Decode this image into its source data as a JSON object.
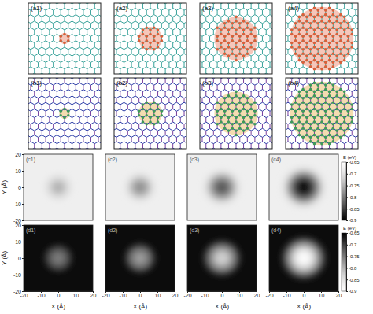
{
  "lattice_panels": [
    {
      "label": "(a1)",
      "radius": 3
    },
    {
      "label": "(a2)",
      "radius": 6.5
    },
    {
      "label": "(a3)",
      "radius": 12
    },
    {
      "label": "(a4)",
      "radius": 17.5
    },
    {
      "label": "(b1)",
      "radius": 3
    },
    {
      "label": "(b2)",
      "radius": 6.5
    },
    {
      "label": "(b3)",
      "radius": 12
    },
    {
      "label": "(b4)",
      "radius": 17.5
    }
  ],
  "chart_data": [
    {
      "type": "heatmap",
      "label": "(c1)",
      "xlim": [
        -20,
        20
      ],
      "ylim": [
        -20,
        20
      ],
      "yticks": [
        -20,
        -10,
        0,
        10,
        20
      ],
      "tick_labels": "y",
      "y_label": "Y (Å)",
      "color": "gray",
      "color_range": [
        -0.9,
        -0.65
      ],
      "background": -0.68,
      "rings": [
        {
          "radius": 8,
          "value": -0.7
        },
        {
          "radius": 5,
          "value": -0.73
        },
        {
          "radius": 3,
          "value": -0.75
        }
      ]
    },
    {
      "type": "heatmap",
      "label": "(c2)",
      "xlim": [
        -20,
        20
      ],
      "ylim": [
        -20,
        20
      ],
      "tick_labels": false,
      "color": "gray",
      "color_range": [
        -0.9,
        -0.65
      ],
      "background": -0.68,
      "rings": [
        {
          "radius": 9,
          "value": -0.7
        },
        {
          "radius": 6,
          "value": -0.75
        },
        {
          "radius": 3,
          "value": -0.78
        }
      ]
    },
    {
      "type": "heatmap",
      "label": "(c3)",
      "xlim": [
        -20,
        20
      ],
      "ylim": [
        -20,
        20
      ],
      "tick_labels": false,
      "color": "gray",
      "color_range": [
        -0.9,
        -0.65
      ],
      "background": -0.68,
      "rings": [
        {
          "radius": 11,
          "value": -0.7
        },
        {
          "radius": 8,
          "value": -0.76
        },
        {
          "radius": 5,
          "value": -0.81
        },
        {
          "radius": 2.5,
          "value": -0.83
        }
      ]
    },
    {
      "type": "heatmap",
      "label": "(c4)",
      "xlim": [
        -20,
        20
      ],
      "ylim": [
        -20,
        20
      ],
      "tick_labels": false,
      "color": "gray",
      "color_range": [
        -0.9,
        -0.65
      ],
      "background": -0.68,
      "rings": [
        {
          "radius": 13,
          "value": -0.7
        },
        {
          "radius": 10,
          "value": -0.77
        },
        {
          "radius": 7,
          "value": -0.84
        },
        {
          "radius": 4,
          "value": -0.89
        }
      ],
      "colorbar": {
        "label": "E (eV)",
        "ticks": [
          -0.65,
          -0.7,
          -0.75,
          -0.8,
          -0.85,
          -0.9
        ]
      }
    },
    {
      "type": "heatmap",
      "label": "(d1)",
      "xlim": [
        -20,
        20
      ],
      "ylim": [
        -20,
        20
      ],
      "xticks": [
        -20,
        -10,
        0,
        10,
        20
      ],
      "yticks": [
        -20,
        -10,
        0,
        10,
        20
      ],
      "tick_labels": true,
      "x_label": "X (Å)",
      "y_label": "Y (Å)",
      "color": "gray_reversed",
      "color_range": [
        -0.9,
        -0.65
      ],
      "background": -0.66,
      "rings": [
        {
          "radius": 8,
          "value": -0.7
        },
        {
          "radius": 5,
          "value": -0.73
        },
        {
          "radius": 3,
          "value": -0.75
        }
      ]
    },
    {
      "type": "heatmap",
      "label": "(d2)",
      "xlim": [
        -20,
        20
      ],
      "ylim": [
        -20,
        20
      ],
      "xticks": [
        -20,
        -10,
        0,
        10,
        20
      ],
      "tick_labels": "x",
      "x_label": "X (Å)",
      "color": "gray_reversed",
      "color_range": [
        -0.9,
        -0.65
      ],
      "background": -0.66,
      "rings": [
        {
          "radius": 9,
          "value": -0.7
        },
        {
          "radius": 6,
          "value": -0.75
        },
        {
          "radius": 3,
          "value": -0.78
        }
      ]
    },
    {
      "type": "heatmap",
      "label": "(d3)",
      "xlim": [
        -20,
        20
      ],
      "ylim": [
        -20,
        20
      ],
      "xticks": [
        -20,
        -10,
        0,
        10,
        20
      ],
      "tick_labels": "x",
      "x_label": "X (Å)",
      "color": "gray_reversed",
      "color_range": [
        -0.9,
        -0.65
      ],
      "background": -0.66,
      "rings": [
        {
          "radius": 11,
          "value": -0.7
        },
        {
          "radius": 8,
          "value": -0.76
        },
        {
          "radius": 5,
          "value": -0.81
        },
        {
          "radius": 2.5,
          "value": -0.83
        }
      ]
    },
    {
      "type": "heatmap",
      "label": "(d4)",
      "xlim": [
        -20,
        20
      ],
      "ylim": [
        -20,
        20
      ],
      "xticks": [
        -20,
        -10,
        0,
        10,
        20
      ],
      "tick_labels": "x",
      "x_label": "X (Å)",
      "color": "gray_reversed",
      "color_range": [
        -0.9,
        -0.65
      ],
      "background": -0.66,
      "rings": [
        {
          "radius": 13,
          "value": -0.7
        },
        {
          "radius": 10,
          "value": -0.77
        },
        {
          "radius": 7,
          "value": -0.84
        },
        {
          "radius": 4,
          "value": -0.89
        }
      ],
      "colorbar": {
        "label": "E (eV)",
        "ticks": [
          -0.65,
          -0.7,
          -0.75,
          -0.8,
          -0.85,
          -0.9
        ]
      }
    }
  ]
}
